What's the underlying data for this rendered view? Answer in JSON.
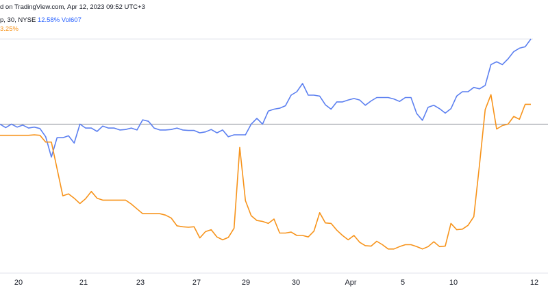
{
  "header": {
    "text": "d on TradingView.com, Apr 12, 2023 09:52 UTC+3"
  },
  "legend": {
    "series1_prefix": "p, 30, NYSE",
    "series1_change": "12.58%",
    "series1_vol_label": "Vol",
    "series1_vol_value": "607",
    "series2_change": "3.25%"
  },
  "colors": {
    "series1": "#5b7ff0",
    "series2": "#f7931a",
    "baseline": "#9598a1",
    "axis_text": "#131722"
  },
  "chart_data": {
    "type": "line",
    "x_tick_labels": [
      "20",
      "21",
      "23",
      "27",
      "29",
      "30",
      "Apr",
      "5",
      "10",
      "12"
    ],
    "baseline": 0,
    "series": [
      {
        "values": [
          0.0,
          -0.7,
          0.0,
          -0.6,
          -0.2,
          -0.8,
          -0.6,
          -0.9,
          -2.6,
          -6.8,
          -2.8,
          -2.8,
          -2.4,
          -3.9,
          0.0,
          -0.8,
          -0.8,
          -1.5,
          -0.4,
          -0.8,
          -0.8,
          -1.2,
          -1.1,
          -0.8,
          -1.2,
          0.9,
          0.6,
          -0.8,
          -1.2,
          -1.2,
          -1.1,
          -0.8,
          -1.2,
          -1.3,
          -1.3,
          -1.8,
          -1.6,
          -1.1,
          -1.8,
          -1.2,
          -2.6,
          -2.2,
          -2.2,
          -2.2,
          0.0,
          1.2,
          0.0,
          2.7,
          3.1,
          3.3,
          3.8,
          6.0,
          6.7,
          8.4,
          6.0,
          6.0,
          5.8,
          4.0,
          3.1,
          4.6,
          4.6,
          5.0,
          5.3,
          5.0,
          3.9,
          4.8,
          5.5,
          5.5,
          5.5,
          5.2,
          4.7,
          5.5,
          5.5,
          2.2,
          0.8,
          3.5,
          3.9,
          3.2,
          2.3,
          3.2,
          5.8,
          6.7,
          6.7,
          7.6,
          7.3,
          8.0,
          12.3,
          12.9,
          12.3,
          13.5,
          15.0,
          15.7,
          16.0,
          17.6
        ],
        "color": "#5b7ff0"
      },
      {
        "values": [
          -2.3,
          -2.3,
          -2.3,
          -2.3,
          -2.3,
          -2.3,
          -2.2,
          -2.3,
          -3.7,
          -3.7,
          -9.2,
          -14.8,
          -14.4,
          -15.3,
          -16.4,
          -15.4,
          -13.9,
          -15.3,
          -15.7,
          -15.7,
          -15.7,
          -15.7,
          -15.7,
          -16.5,
          -17.5,
          -18.5,
          -18.5,
          -18.5,
          -18.5,
          -18.8,
          -19.4,
          -21.0,
          -21.2,
          -21.3,
          -21.2,
          -23.5,
          -22.2,
          -21.8,
          -23.3,
          -23.9,
          -23.4,
          -21.5,
          -4.8,
          -15.8,
          -18.9,
          -19.9,
          -20.1,
          -20.5,
          -19.6,
          -22.5,
          -22.5,
          -22.3,
          -23.0,
          -23.0,
          -23.3,
          -22.1,
          -18.3,
          -20.4,
          -20.5,
          -21.9,
          -23.0,
          -23.9,
          -23.0,
          -24.4,
          -25.1,
          -25.2,
          -24.2,
          -24.9,
          -25.8,
          -25.8,
          -25.3,
          -24.9,
          -24.9,
          -25.3,
          -25.8,
          -25.3,
          -24.3,
          -25.3,
          -25.2,
          -20.5,
          -21.8,
          -21.7,
          -20.9,
          -19.1,
          -8.4,
          3.0,
          6.1,
          -1.0,
          -0.3,
          0.0,
          1.6,
          1.0,
          4.1,
          4.1
        ],
        "color": "#f7931a"
      }
    ],
    "ylim": [
      -29.5,
      20.0
    ],
    "grid": false,
    "legend": "top-left"
  }
}
